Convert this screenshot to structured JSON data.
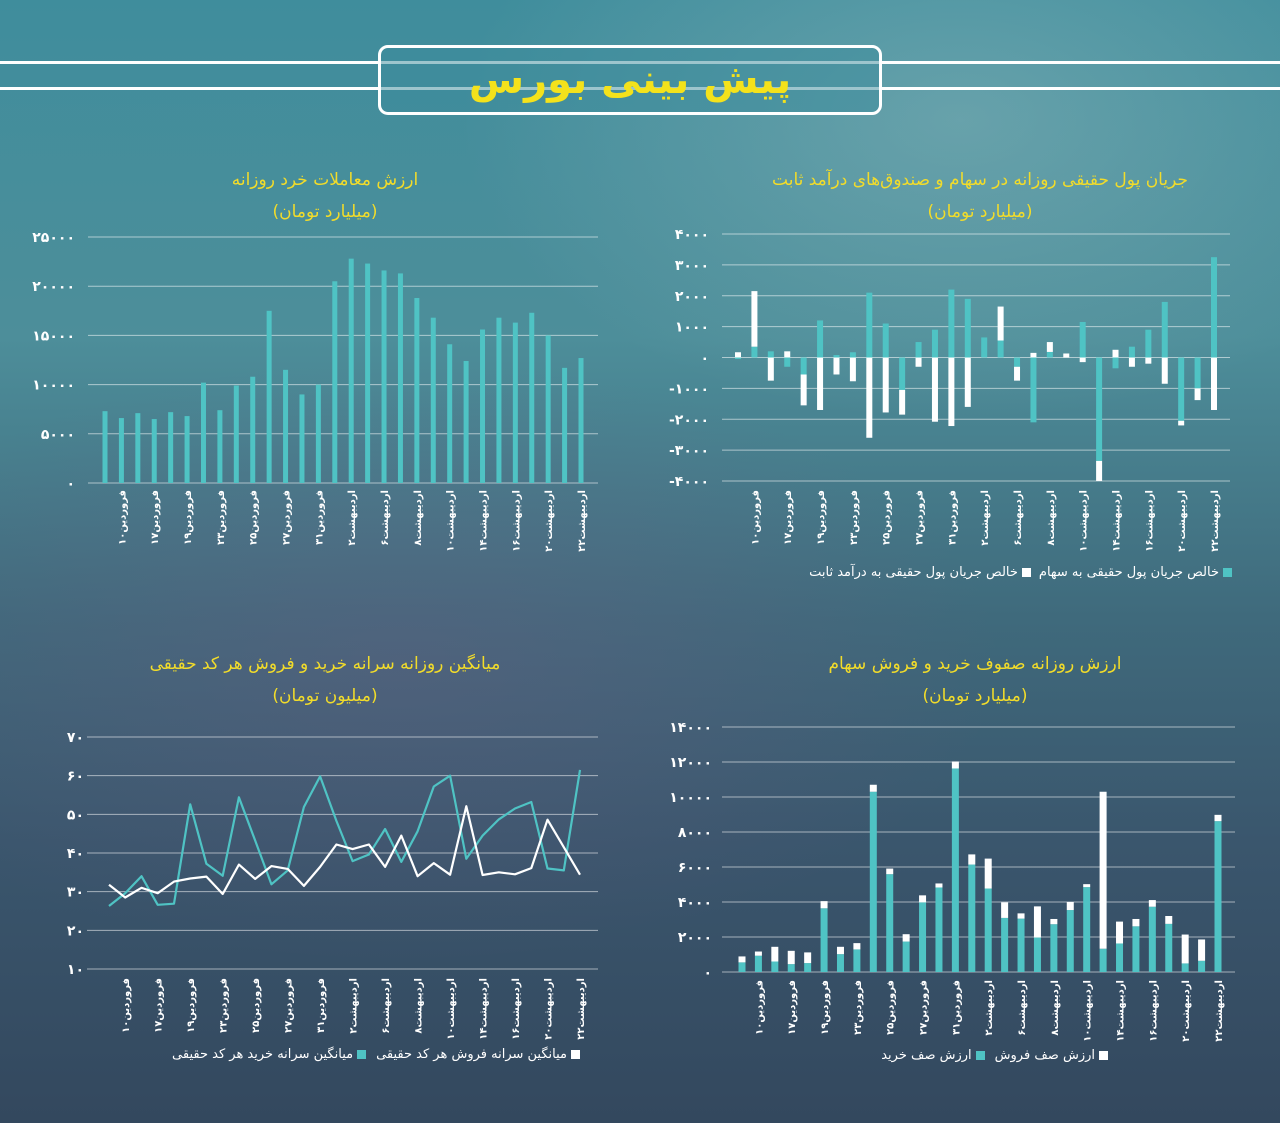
{
  "page_title": "پیش بینی بورس",
  "colors": {
    "accent": "#4fc3c4",
    "secondary": "#ffffff",
    "title": "#f2dc2a"
  },
  "x_labels": [
    "فروردین۱۰",
    "فروردین۱۷",
    "فروردین۱۹",
    "فروردین۲۳",
    "فروردین۲۵",
    "فروردین۲۷",
    "فروردین۳۱",
    "اردیبهشت۲",
    "اردیبهشت۶",
    "اردیبهشت۸",
    "اردیبهشت۱۰",
    "اردیبهشت۱۴",
    "اردیبهشت۱۶",
    "اردیبهشت۲۰",
    "اردیبهشت۲۲"
  ],
  "chart_data": [
    {
      "id": "retail-trade-value",
      "type": "bar",
      "title": "ارزش معاملات خرد روزانه",
      "subtitle": "(میلیارد تومان)",
      "ylim": [
        0,
        25000
      ],
      "yticks": [
        0,
        5000,
        10000,
        15000,
        20000,
        25000
      ],
      "ytick_labels": [
        "۰",
        "۵۰۰۰",
        "۱۰۰۰۰",
        "۱۵۰۰۰",
        "۲۰۰۰۰",
        "۲۵۰۰۰"
      ],
      "grid": true,
      "series": [
        {
          "color": "#4fc3c4",
          "values": [
            7300,
            6600,
            7100,
            6500,
            7200,
            6800,
            10200,
            7400,
            9900,
            10800,
            17500,
            11500,
            9000,
            10000,
            20500,
            22800,
            22300,
            21600,
            21300,
            18800,
            16800,
            14100,
            12400,
            15600,
            16800,
            16300,
            17300,
            15000,
            11700,
            12700
          ]
        }
      ]
    },
    {
      "id": "real-money-flow",
      "type": "bar",
      "stacked": true,
      "title": "جریان پول حقیقی روزانه در سهام و صندوق‌های درآمد ثابت",
      "subtitle": "(میلیارد تومان)",
      "ylim": [
        -4000,
        4000
      ],
      "yticks": [
        -4000,
        -3000,
        -2000,
        -1000,
        0,
        1000,
        2000,
        3000,
        4000
      ],
      "ytick_labels": [
        "-۴۰۰۰",
        "-۳۰۰۰",
        "-۲۰۰۰",
        "-۱۰۰۰",
        "۰",
        "۱۰۰۰",
        "۲۰۰۰",
        "۳۰۰۰",
        "۴۰۰۰"
      ],
      "grid": true,
      "legend_position": "bottom",
      "series": [
        {
          "name": "خالص جریان پول حقیقی به سهام",
          "color": "#4fc3c4",
          "values": [
            -50,
            350,
            200,
            -300,
            -550,
            1200,
            80,
            170,
            2100,
            1100,
            -1050,
            500,
            900,
            2200,
            1900,
            650,
            550,
            -300,
            -2100,
            180,
            0,
            1150,
            -3350,
            -350,
            350,
            900,
            1800,
            -2050,
            -1000,
            3250
          ]
        },
        {
          "name": "خالص جریان پول حقیقی به درآمد ثابت",
          "color": "#ffffff",
          "values": [
            170,
            1800,
            -750,
            200,
            -1000,
            -1700,
            -550,
            -770,
            -2600,
            -1780,
            -800,
            -300,
            -2080,
            -2220,
            -1600,
            0,
            1100,
            -450,
            150,
            320,
            130,
            -150,
            -650,
            250,
            -300,
            -200,
            -850,
            -150,
            -380,
            -1700
          ]
        }
      ]
    },
    {
      "id": "avg-per-capita",
      "type": "line",
      "title": "میانگین روزانه سرانه خرید و فروش هر کد حقیقی",
      "subtitle": "(میلیون تومان)",
      "ylim": [
        10,
        70
      ],
      "yticks": [
        10,
        20,
        30,
        40,
        50,
        60,
        70
      ],
      "ytick_labels": [
        "۱۰",
        "۲۰",
        "۳۰",
        "۴۰",
        "۵۰",
        "۶۰",
        "۷۰"
      ],
      "grid": true,
      "legend_position": "bottom",
      "series": [
        {
          "name": "میانگین سرانه خرید هر کد حقیقی",
          "color": "#4fc3c4",
          "values": [
            26.3,
            29.6,
            34,
            26.6,
            26.9,
            52.6,
            37.2,
            34.1,
            54.4,
            43.2,
            31.9,
            35.5,
            51.9,
            59.8,
            48.3,
            37.9,
            39.6,
            46.2,
            37.7,
            45.6,
            57.2,
            60,
            38.5,
            44.5,
            48.7,
            51.5,
            53.2,
            36,
            35.5,
            61.5
          ]
        },
        {
          "name": "میانگین سرانه فروش هر کد حقیقی",
          "color": "#ffffff",
          "values": [
            31.8,
            28.5,
            31,
            29.6,
            32.6,
            33.4,
            33.9,
            29.4,
            37,
            33.3,
            36.6,
            35.9,
            31.5,
            36.4,
            42.2,
            41,
            42.2,
            36.4,
            44.5,
            34,
            37.4,
            34.4,
            52.1,
            34.3,
            35,
            34.5,
            36.1,
            48.6,
            41.5,
            34.4
          ]
        }
      ]
    },
    {
      "id": "queue-value",
      "type": "bar",
      "stacked": true,
      "title": "ارزش روزانه صفوف خرید و فروش سهام",
      "subtitle": "(میلیارد تومان)",
      "ylim": [
        0,
        14000
      ],
      "yticks": [
        0,
        2000,
        4000,
        6000,
        8000,
        10000,
        12000,
        14000
      ],
      "ytick_labels": [
        "۰",
        "۲۰۰۰",
        "۴۰۰۰",
        "۶۰۰۰",
        "۸۰۰۰",
        "۱۰۰۰۰",
        "۱۲۰۰۰",
        "۱۴۰۰۰"
      ],
      "grid": true,
      "legend_position": "bottom",
      "series": [
        {
          "name": "ارزش صف خرید",
          "color": "#4fc3c4",
          "values": [
            550,
            930,
            600,
            450,
            510,
            3640,
            1020,
            1290,
            10300,
            5590,
            1740,
            3980,
            4830,
            11630,
            6140,
            4770,
            3090,
            3050,
            1970,
            2730,
            3540,
            4850,
            1330,
            1630,
            2610,
            3730,
            2750,
            490,
            640,
            8620
          ]
        },
        {
          "name": "ارزش صف فروش",
          "color": "#ffffff",
          "values": [
            340,
            240,
            840,
            760,
            610,
            410,
            420,
            360,
            400,
            320,
            420,
            400,
            230,
            400,
            580,
            1710,
            890,
            300,
            1780,
            300,
            460,
            170,
            8970,
            1250,
            420,
            380,
            450,
            1650,
            1220,
            360
          ]
        }
      ]
    }
  ]
}
